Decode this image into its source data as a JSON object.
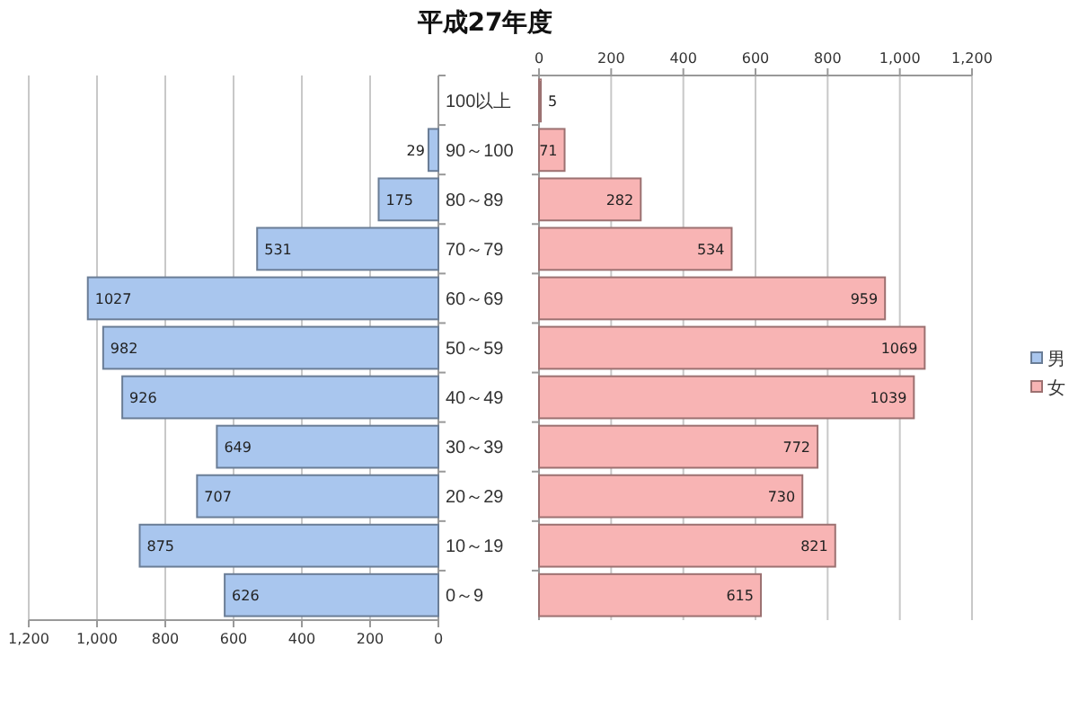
{
  "chart_data": {
    "type": "bar",
    "orientation": "horizontal",
    "title": "平成27年度",
    "categories": [
      "100以上",
      "90～100",
      "80～89",
      "70～79",
      "60～69",
      "50～59",
      "40～49",
      "30～39",
      "20～29",
      "10～19",
      "0～9"
    ],
    "series": [
      {
        "name": "男",
        "color": "#a9c6ee",
        "values": [
          null,
          29,
          175,
          531,
          1027,
          982,
          926,
          649,
          707,
          875,
          626
        ]
      },
      {
        "name": "女",
        "color": "#f8b4b4",
        "axis": "x2",
        "values": [
          5,
          71,
          282,
          534,
          959,
          1069,
          1039,
          772,
          730,
          821,
          615
        ]
      }
    ],
    "xlim": [
      1200,
      0
    ],
    "xticks": [
      {
        "value": 1200,
        "label": "1,200"
      },
      {
        "value": 1000,
        "label": "1,000"
      },
      800,
      600,
      400,
      200,
      0
    ],
    "x2lim": [
      0,
      1200
    ],
    "x2ticks": [
      0,
      200,
      400,
      600,
      800,
      {
        "value": 1000,
        "label": "1,000"
      },
      {
        "value": 1200,
        "label": "1,200"
      }
    ],
    "data_labels": true,
    "grid": true,
    "legend": "right"
  }
}
